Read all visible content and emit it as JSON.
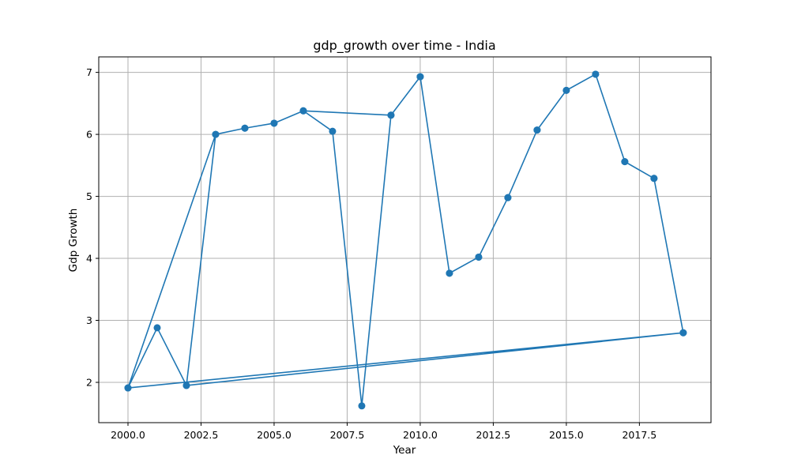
{
  "chart_data": {
    "type": "line",
    "title": "gdp_growth over time - India",
    "xlabel": "Year",
    "ylabel": "Gdp Growth",
    "xlim": [
      1999.0,
      2019.95
    ],
    "ylim": [
      1.35,
      7.25
    ],
    "xticks": [
      2000.0,
      2002.5,
      2005.0,
      2007.5,
      2010.0,
      2012.5,
      2015.0,
      2017.5
    ],
    "xtick_labels": [
      "2000.0",
      "2002.5",
      "2005.0",
      "2007.5",
      "2010.0",
      "2012.5",
      "2015.0",
      "2017.5"
    ],
    "yticks": [
      2,
      3,
      4,
      5,
      6,
      7
    ],
    "ytick_labels": [
      "2",
      "3",
      "4",
      "5",
      "6",
      "7"
    ],
    "grid": true,
    "color": "#1f77b4",
    "marker": "circle",
    "series": [
      {
        "x": [
          2000,
          2003,
          2004,
          2005,
          2006,
          2009,
          2010,
          2011,
          2012,
          2013,
          2014,
          2015,
          2016,
          2017,
          2018,
          2019,
          2000,
          2001,
          2002,
          2003,
          2004,
          2005,
          2006,
          2007,
          2008,
          2009,
          2010,
          2011,
          2012,
          2013,
          2014,
          2015,
          2016,
          2017,
          2018,
          2019,
          2002
        ],
        "y": [
          1.91,
          6.0,
          6.1,
          6.18,
          6.38,
          6.31,
          6.93,
          3.76,
          4.02,
          4.98,
          6.07,
          6.71,
          6.97,
          5.56,
          5.29,
          2.8,
          1.91,
          2.88,
          1.95,
          6.0,
          6.1,
          6.18,
          6.38,
          6.05,
          1.62,
          6.31,
          6.93,
          3.76,
          4.02,
          4.98,
          6.07,
          6.71,
          6.97,
          5.56,
          5.29,
          2.8,
          1.95
        ]
      }
    ]
  }
}
